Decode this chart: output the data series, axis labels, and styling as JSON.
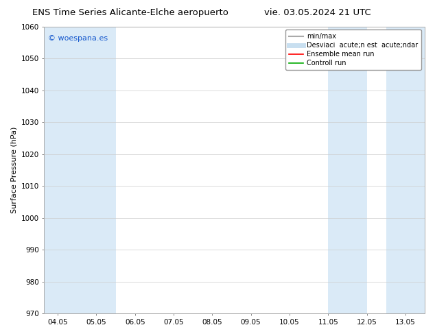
{
  "title_left": "ENS Time Series Alicante-Elche aeropuerto",
  "title_right": "vie. 03.05.2024 21 UTC",
  "ylabel": "Surface Pressure (hPa)",
  "ylim": [
    970,
    1060
  ],
  "yticks": [
    970,
    980,
    990,
    1000,
    1010,
    1020,
    1030,
    1040,
    1050,
    1060
  ],
  "xtick_labels": [
    "04.05",
    "05.05",
    "06.05",
    "07.05",
    "08.05",
    "09.05",
    "10.05",
    "11.05",
    "12.05",
    "13.05"
  ],
  "xtick_positions": [
    0,
    1,
    2,
    3,
    4,
    5,
    6,
    7,
    8,
    9
  ],
  "xlim": [
    -0.35,
    9.5
  ],
  "watermark": "© woespana.es",
  "watermark_color": "#1155cc",
  "shaded_bands": [
    {
      "xmin": -0.35,
      "xmax": 0.5,
      "color": "#daeaf7"
    },
    {
      "xmin": 0.5,
      "xmax": 1.5,
      "color": "#daeaf7"
    },
    {
      "xmin": 7.0,
      "xmax": 8.0,
      "color": "#daeaf7"
    },
    {
      "xmin": 8.5,
      "xmax": 9.5,
      "color": "#daeaf7"
    }
  ],
  "legend_entries": [
    {
      "label": "min/max",
      "color": "#aaaaaa",
      "linewidth": 1.5,
      "linestyle": "-"
    },
    {
      "label": "Desviaci  acute;n est  acute;ndar",
      "color": "#c8dff0",
      "linewidth": 5,
      "linestyle": "-"
    },
    {
      "label": "Ensemble mean run",
      "color": "#ff0000",
      "linewidth": 1.2,
      "linestyle": "-"
    },
    {
      "label": "Controll run",
      "color": "#00aa00",
      "linewidth": 1.2,
      "linestyle": "-"
    }
  ],
  "bg_color": "#ffffff",
  "plot_bg_color": "#ffffff",
  "grid_color": "#cccccc",
  "title_fontsize": 9.5,
  "axis_fontsize": 8,
  "tick_fontsize": 7.5,
  "legend_fontsize": 7
}
